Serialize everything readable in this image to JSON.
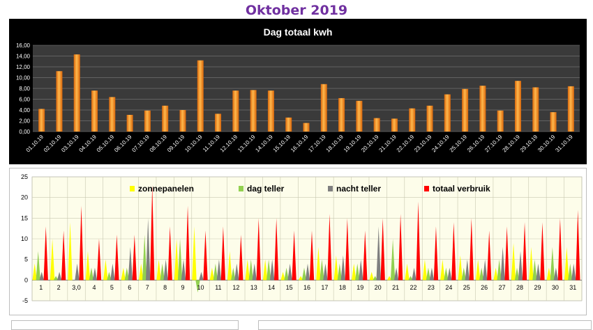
{
  "page_title": "Oktober 2019",
  "chart_data": [
    {
      "type": "bar",
      "title": "Dag totaal kwh",
      "categories": [
        "01.10.19",
        "02.10.19",
        "03.10.19",
        "04.10.19",
        "05.10.19",
        "06.10.19",
        "07.10.19",
        "08.10.19",
        "09.10.19",
        "10.10.19",
        "11.10.19",
        "12.10.19",
        "13.10.19",
        "14.10.19",
        "15.10.19",
        "16.10.19",
        "17.10.19",
        "18.10.19",
        "19.10.19",
        "20.10.19",
        "21.10.19",
        "22.10.19",
        "23.10.19",
        "24.10.19",
        "25.10.19",
        "26.10.19",
        "27.10.19",
        "28.10.19",
        "29.10.19",
        "30.10.19",
        "31.10.19"
      ],
      "values": [
        4.2,
        11.2,
        14.3,
        7.6,
        6.4,
        3.1,
        3.9,
        4.8,
        4.0,
        13.2,
        3.3,
        7.6,
        7.7,
        7.6,
        2.6,
        1.6,
        8.8,
        6.2,
        5.7,
        2.5,
        2.4,
        4.3,
        4.8,
        6.9,
        7.9,
        8.5,
        3.9,
        9.4,
        8.2,
        3.6,
        8.4
      ],
      "yticks": [
        "0,00",
        "2,00",
        "4,00",
        "6,00",
        "8,00",
        "10,00",
        "12,00",
        "14,00",
        "16,00"
      ],
      "ylim": [
        0,
        16
      ],
      "grid": true,
      "colors": {
        "bar_light": "#ffb84d",
        "bar_dark": "#d9660a",
        "background": "#000000",
        "plot": "#3a3a3a"
      }
    },
    {
      "type": "bar",
      "categories": [
        "1",
        "2",
        "3,0",
        "4",
        "5",
        "6",
        "7",
        "8",
        "9",
        "10",
        "11",
        "12",
        "13",
        "14",
        "15",
        "16",
        "17",
        "18",
        "19",
        "20",
        "21",
        "22",
        "23",
        "24",
        "25",
        "26",
        "27",
        "28",
        "29",
        "30",
        "31"
      ],
      "yticks": [
        "-5",
        "0",
        "5",
        "10",
        "15",
        "20",
        "25"
      ],
      "ylim": [
        -5,
        25
      ],
      "legend_position": "top",
      "series": [
        {
          "name": "zonnepanelen",
          "color": "#ffff00",
          "values": [
            4,
            10,
            14,
            7,
            5,
            3,
            4,
            5,
            10,
            13,
            3,
            7,
            5,
            5,
            2,
            1,
            8,
            6,
            4,
            2,
            1,
            4,
            5,
            5,
            6,
            5,
            3,
            9,
            8,
            3,
            8
          ]
        },
        {
          "name": "dag teller",
          "color": "#92d050",
          "values": [
            7,
            1,
            0,
            3,
            2,
            3,
            11,
            4,
            10,
            -3,
            4,
            3,
            5,
            5,
            3,
            3,
            5,
            4,
            4,
            1,
            10,
            1,
            3,
            3,
            3,
            3,
            5,
            3,
            5,
            8,
            4
          ]
        },
        {
          "name": "nacht teller",
          "color": "#7f7f7f",
          "values": [
            2,
            2,
            4,
            3,
            4,
            8,
            15,
            5,
            5,
            2,
            5,
            4,
            4,
            5,
            4,
            4,
            4,
            6,
            5,
            13,
            3,
            3,
            3,
            3,
            5,
            5,
            8,
            7,
            4,
            3,
            4
          ]
        },
        {
          "name": "totaal verbruik",
          "color": "#ff0000",
          "values": [
            13,
            12,
            18,
            10,
            11,
            11,
            23,
            13,
            18,
            12,
            13,
            11,
            15,
            15,
            12,
            12,
            16,
            15,
            12,
            15,
            16,
            19,
            13,
            14,
            15,
            12,
            13,
            14,
            14,
            15,
            17
          ]
        }
      ],
      "grid": true,
      "colors": {
        "plot": "#fdfdea",
        "grid": "#c8c8b0"
      }
    }
  ]
}
